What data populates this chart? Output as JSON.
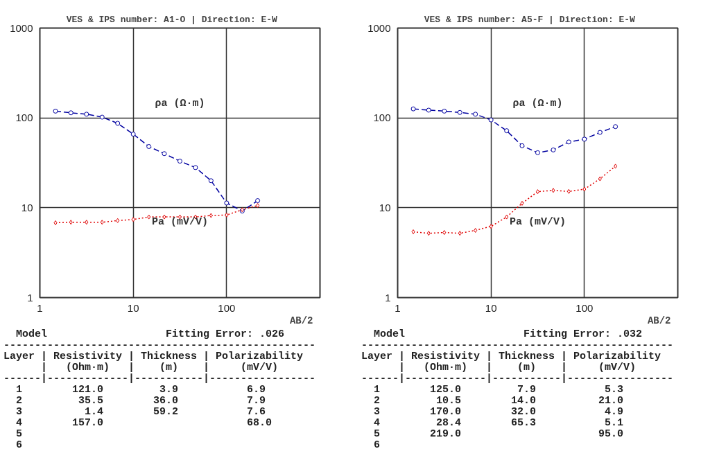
{
  "chart_data": [
    {
      "type": "line",
      "title": "VES & IPS number:  A1-O  |  Direction: E-W",
      "xlabel": "AB/2",
      "log": "xy",
      "grid": true,
      "x": [
        1.47,
        2.15,
        3.16,
        4.64,
        6.81,
        10,
        14.7,
        21.5,
        31.6,
        46.4,
        68.1,
        100,
        147,
        215
      ],
      "xlim": [
        1,
        1000
      ],
      "xticks": [
        1,
        10,
        100
      ],
      "ylim": [
        1,
        1000
      ],
      "yticks": [
        1,
        10,
        100,
        1000
      ],
      "series": [
        {
          "name": "ρa (Ω·m)",
          "color": "#0000a0",
          "marker": "circle",
          "line_style": "dashed",
          "values": [
            119,
            114,
            110,
            102,
            87,
            66,
            48,
            40,
            33,
            28,
            20,
            11.3,
            9.2,
            12
          ]
        },
        {
          "name": "Pa (mV/V)",
          "color": "#e00000",
          "marker": "diamond",
          "line_style": "dotted",
          "values": [
            6.8,
            6.9,
            6.9,
            6.9,
            7.2,
            7.4,
            7.9,
            7.9,
            7.9,
            7.9,
            8.2,
            8.3,
            9.5,
            10.6
          ]
        }
      ],
      "annotations": [
        "  Model                   Fitting Error: .026",
        "--------------------------------------------------",
        "Layer | Resistivity | Thickness | Polarizability",
        "      |   (Ohm·m)   |    (m)    |     (mV/V)",
        "------|-------------|-----------|-----------------",
        "  1        121.0         3.9           6.9",
        "  2         35.5        36.0           7.9",
        "  3          1.4        59.2           7.6",
        "  4        157.0                       68.0",
        "  5",
        "  6"
      ]
    },
    {
      "type": "line",
      "title": "VES & IPS number:  A5-F  |  Direction: E-W",
      "xlabel": "AB/2",
      "log": "xy",
      "grid": true,
      "x": [
        1.47,
        2.15,
        3.16,
        4.64,
        6.81,
        10,
        14.7,
        21.5,
        31.6,
        46.4,
        68.1,
        100,
        147,
        215
      ],
      "xlim": [
        1,
        1000
      ],
      "xticks": [
        1,
        10,
        100
      ],
      "ylim": [
        1,
        1000
      ],
      "yticks": [
        1,
        10,
        100,
        1000
      ],
      "series": [
        {
          "name": "ρa (Ω·m)",
          "color": "#0000a0",
          "marker": "circle",
          "line_style": "dashed",
          "values": [
            126,
            122,
            119,
            115,
            110,
            95,
            72,
            49,
            41,
            44,
            54,
            58,
            69,
            80
          ]
        },
        {
          "name": "Pa (mV/V)",
          "color": "#e00000",
          "marker": "diamond",
          "line_style": "dotted",
          "values": [
            5.4,
            5.2,
            5.3,
            5.2,
            5.6,
            6.2,
            7.9,
            11.2,
            15.1,
            15.6,
            15.2,
            16.1,
            21,
            29
          ]
        }
      ],
      "annotations": [
        "  Model                   Fitting Error: .032",
        "--------------------------------------------------",
        "Layer | Resistivity | Thickness | Polarizability",
        "      |   (Ohm·m)   |    (m)    |     (mV/V)",
        "------|-------------|-----------|-----------------",
        "  1        125.0         7.9           5.3",
        "  2         10.5        14.0          21.0",
        "  3        170.0        32.0           4.9",
        "  4         28.4        65.3           5.1",
        "  5        219.0                      95.0",
        "  6"
      ]
    }
  ]
}
